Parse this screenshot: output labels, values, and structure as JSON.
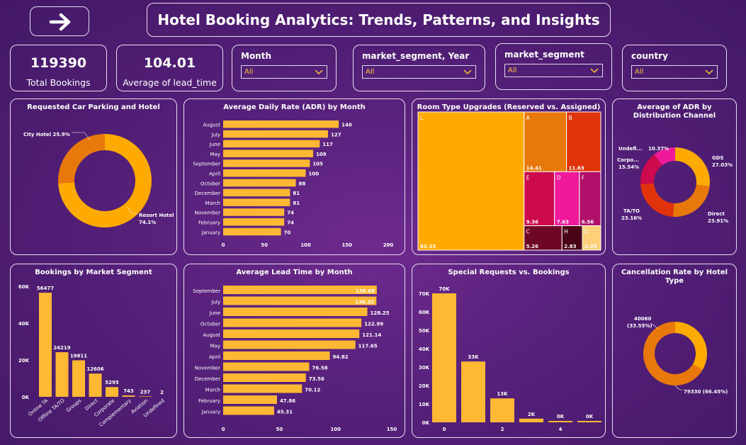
{
  "header": {
    "title": "Hotel Booking Analytics: Trends, Patterns, and Insights",
    "nav_icon": "arrow-right-icon"
  },
  "kpis": [
    {
      "value": "119390",
      "label": "Total Bookings"
    },
    {
      "value": "104.01",
      "label": "Average of lead_time"
    }
  ],
  "slicers": [
    {
      "label": "Month",
      "value": "All"
    },
    {
      "label": "market_segment, Year",
      "value": "All"
    },
    {
      "label": "market_segment",
      "value": "All"
    },
    {
      "label": "country",
      "value": "All"
    }
  ],
  "colors": {
    "bar": "#ffb833",
    "orange": "#ffaa00",
    "dark_orange": "#e8780a",
    "red": "#e0330c",
    "crimson": "#cc0a4d",
    "pink": "#ee1a9a",
    "magenta": "#b0106a",
    "maroon": "#6e0626",
    "dark_maroon": "#4a0418",
    "pale": "#ffd078"
  },
  "chart_data": [
    {
      "id": "parking",
      "type": "pie",
      "title": "Requested Car Parking and Hotel",
      "labels": [
        "City Hotel",
        "Resort Hotel"
      ],
      "values": [
        25.9,
        74.1
      ],
      "display": [
        "City Hotel 25.9%",
        "Resort Hotel 74.1%"
      ]
    },
    {
      "id": "adr_month",
      "type": "bar",
      "orientation": "horizontal",
      "title": "Average Daily Rate (ADR) by Month",
      "categories": [
        "August",
        "July",
        "June",
        "May",
        "September",
        "April",
        "October",
        "December",
        "March",
        "November",
        "February",
        "January"
      ],
      "values": [
        140,
        127,
        117,
        109,
        105,
        100,
        88,
        81,
        81,
        74,
        74,
        70
      ],
      "xlim": [
        0,
        200
      ],
      "xticks": [
        "0",
        "50",
        "100",
        "150",
        "200"
      ]
    },
    {
      "id": "room_upgrades",
      "type": "treemap",
      "title": "Room Type Upgrades (Reserved vs. Assigned)",
      "labels": [
        "L",
        "A",
        "B",
        "E",
        "D",
        "F",
        "C",
        "H",
        "G"
      ],
      "values": [
        83.33,
        14.41,
        11.63,
        9.36,
        7.63,
        6.56,
        5.26,
        2.83,
        2.55
      ]
    },
    {
      "id": "adr_channel",
      "type": "pie",
      "title": "Average of ADR by Distribution Channel",
      "labels": [
        "GDS",
        "Direct",
        "TA/TO",
        "Corpo...",
        "Undefi..."
      ],
      "values": [
        27.03,
        23.91,
        23.16,
        15.54,
        10.37
      ],
      "display": [
        "27.03%",
        "23.91%",
        "23.16%",
        "15.54%",
        "10.37%"
      ]
    },
    {
      "id": "market_segment",
      "type": "bar",
      "title": "Bookings by Market Segment",
      "categories": [
        "Online TA",
        "Offline TA/TO",
        "Groups",
        "Direct",
        "Corporate",
        "Complementary",
        "Aviation",
        "Undefined"
      ],
      "values": [
        56477,
        24219,
        19811,
        12606,
        5295,
        743,
        237,
        2
      ],
      "ylim": [
        0,
        60000
      ],
      "yticks": [
        "0K",
        "20K",
        "40K",
        "60K"
      ]
    },
    {
      "id": "lead_month",
      "type": "bar",
      "orientation": "horizontal",
      "title": "Average Lead Time by Month",
      "categories": [
        "September",
        "July",
        "June",
        "October",
        "August",
        "May",
        "April",
        "November",
        "December",
        "March",
        "February",
        "January"
      ],
      "values": [
        136.68,
        136.32,
        128.25,
        122.99,
        121.14,
        117.65,
        94.82,
        76.58,
        73.56,
        70.12,
        47.86,
        45.31
      ],
      "xlim": [
        0,
        150
      ],
      "xticks": [
        "0",
        "50",
        "100",
        "150"
      ]
    },
    {
      "id": "special_requests",
      "type": "bar",
      "title": "Special Requests vs. Bookings",
      "categories": [
        "0",
        "1",
        "2",
        "3",
        "4",
        "5"
      ],
      "values": [
        70000,
        33000,
        13000,
        2000,
        0,
        0
      ],
      "value_labels": [
        "70K",
        "33K",
        "13K",
        "2K",
        "0K",
        "0K"
      ],
      "ylim": [
        0,
        70000
      ],
      "yticks": [
        "0K",
        "10K",
        "20K",
        "30K",
        "40K",
        "50K",
        "60K",
        "70K"
      ],
      "xticks": [
        "0",
        "2",
        "4"
      ]
    },
    {
      "id": "cancellation",
      "type": "pie",
      "title": "Cancellation Rate by Hotel Type",
      "values": [
        40060,
        79330
      ],
      "display": [
        "40060\n(33.55%)",
        "79330 (66.45%)"
      ]
    }
  ]
}
